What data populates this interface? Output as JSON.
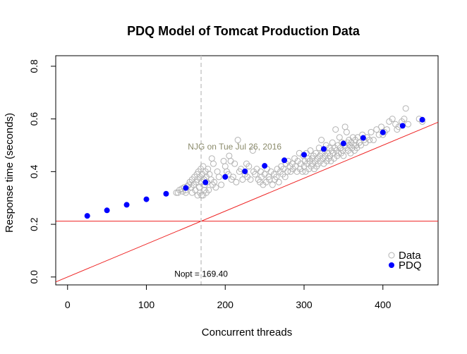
{
  "chart_data": {
    "type": "scatter",
    "title": "PDQ Model of Tomcat Production Data",
    "xlabel": "Concurrent threads",
    "ylabel": "Response time (seconds)",
    "xlim": [
      -15,
      470
    ],
    "ylim": [
      -0.03,
      0.84
    ],
    "x_ticks": [
      0,
      100,
      200,
      300,
      400
    ],
    "y_ticks": [
      0.0,
      0.2,
      0.4,
      0.6,
      0.8
    ],
    "x_tick_labels": [
      "0",
      "100",
      "200",
      "300",
      "400"
    ],
    "y_tick_labels": [
      "0.0",
      "0.2",
      "0.4",
      "0.6",
      "0.8"
    ],
    "grid": false,
    "legend_position": "bottom-right",
    "annotation_text": "NJG on Tue Jul 26, 2016",
    "annotation_x": 212,
    "annotation_y": 0.495,
    "nopt_label": "Nopt = 169.40",
    "nopt_value": 169.4,
    "nopt_label_y": 0.012,
    "horizontal_line_y": 0.212,
    "diagonal_line": {
      "slope": 0.00125,
      "intercept": 0
    },
    "colors": {
      "data_points": "#b3b3b3",
      "pdq_points": "#0000ff",
      "ref_lines": "#ee2222",
      "nopt_line": "#c8c8c8",
      "annotation": "#8b8b6b"
    },
    "series": [
      {
        "name": "Data",
        "marker": "open-circle",
        "points": [
          [
            138,
            0.32
          ],
          [
            142,
            0.33
          ],
          [
            145,
            0.335
          ],
          [
            148,
            0.34
          ],
          [
            150,
            0.33
          ],
          [
            152,
            0.345
          ],
          [
            154,
            0.35
          ],
          [
            155,
            0.36
          ],
          [
            157,
            0.34
          ],
          [
            158,
            0.37
          ],
          [
            160,
            0.35
          ],
          [
            161,
            0.38
          ],
          [
            162,
            0.33
          ],
          [
            163,
            0.36
          ],
          [
            164,
            0.39
          ],
          [
            165,
            0.37
          ],
          [
            166,
            0.4
          ],
          [
            167,
            0.34
          ],
          [
            168,
            0.38
          ],
          [
            169,
            0.41
          ],
          [
            170,
            0.36
          ],
          [
            170,
            0.31
          ],
          [
            171,
            0.39
          ],
          [
            172,
            0.42
          ],
          [
            173,
            0.37
          ],
          [
            174,
            0.35
          ],
          [
            175,
            0.4
          ],
          [
            176,
            0.38
          ],
          [
            177,
            0.36
          ],
          [
            178,
            0.41
          ],
          [
            179,
            0.33
          ],
          [
            180,
            0.39
          ],
          [
            182,
            0.37
          ],
          [
            183,
            0.45
          ],
          [
            185,
            0.43
          ],
          [
            186,
            0.36
          ],
          [
            188,
            0.34
          ],
          [
            190,
            0.4
          ],
          [
            192,
            0.38
          ],
          [
            195,
            0.35
          ],
          [
            165,
            0.31
          ],
          [
            168,
            0.32
          ],
          [
            172,
            0.31
          ],
          [
            174,
            0.33
          ],
          [
            176,
            0.32
          ],
          [
            158,
            0.32
          ],
          [
            150,
            0.32
          ],
          [
            146,
            0.325
          ],
          [
            140,
            0.32
          ],
          [
            184,
            0.35
          ],
          [
            198,
            0.44
          ],
          [
            200,
            0.42
          ],
          [
            202,
            0.4
          ],
          [
            204,
            0.39
          ],
          [
            205,
            0.46
          ],
          [
            207,
            0.44
          ],
          [
            208,
            0.37
          ],
          [
            210,
            0.38
          ],
          [
            212,
            0.43
          ],
          [
            214,
            0.36
          ],
          [
            216,
            0.52
          ],
          [
            218,
            0.4
          ],
          [
            220,
            0.41
          ],
          [
            222,
            0.37
          ],
          [
            225,
            0.39
          ],
          [
            227,
            0.43
          ],
          [
            228,
            0.38
          ],
          [
            230,
            0.42
          ],
          [
            232,
            0.37
          ],
          [
            235,
            0.48
          ],
          [
            236,
            0.4
          ],
          [
            238,
            0.39
          ],
          [
            240,
            0.41
          ],
          [
            242,
            0.37
          ],
          [
            244,
            0.36
          ],
          [
            245,
            0.4
          ],
          [
            246,
            0.38
          ],
          [
            248,
            0.35
          ],
          [
            250,
            0.39
          ],
          [
            252,
            0.36
          ],
          [
            253,
            0.41
          ],
          [
            255,
            0.38
          ],
          [
            256,
            0.37
          ],
          [
            258,
            0.4
          ],
          [
            260,
            0.35
          ],
          [
            262,
            0.39
          ],
          [
            263,
            0.37
          ],
          [
            265,
            0.38
          ],
          [
            266,
            0.41
          ],
          [
            268,
            0.36
          ],
          [
            270,
            0.4
          ],
          [
            271,
            0.42
          ],
          [
            273,
            0.39
          ],
          [
            274,
            0.41
          ],
          [
            276,
            0.38
          ],
          [
            277,
            0.43
          ],
          [
            279,
            0.4
          ],
          [
            280,
            0.44
          ],
          [
            282,
            0.42
          ],
          [
            283,
            0.4
          ],
          [
            285,
            0.43
          ],
          [
            286,
            0.41
          ],
          [
            288,
            0.45
          ],
          [
            289,
            0.42
          ],
          [
            291,
            0.4
          ],
          [
            292,
            0.44
          ],
          [
            294,
            0.47
          ],
          [
            295,
            0.41
          ],
          [
            296,
            0.43
          ],
          [
            298,
            0.4
          ],
          [
            299,
            0.46
          ],
          [
            300,
            0.42
          ],
          [
            301,
            0.44
          ],
          [
            302,
            0.4
          ],
          [
            303,
            0.47
          ],
          [
            304,
            0.43
          ],
          [
            305,
            0.45
          ],
          [
            306,
            0.41
          ],
          [
            307,
            0.44
          ],
          [
            308,
            0.48
          ],
          [
            309,
            0.42
          ],
          [
            310,
            0.45
          ],
          [
            311,
            0.43
          ],
          [
            312,
            0.46
          ],
          [
            313,
            0.41
          ],
          [
            314,
            0.44
          ],
          [
            315,
            0.47
          ],
          [
            316,
            0.42
          ],
          [
            317,
            0.45
          ],
          [
            318,
            0.43
          ],
          [
            319,
            0.49
          ],
          [
            320,
            0.46
          ],
          [
            321,
            0.44
          ],
          [
            322,
            0.52
          ],
          [
            323,
            0.47
          ],
          [
            324,
            0.45
          ],
          [
            325,
            0.43
          ],
          [
            326,
            0.48
          ],
          [
            327,
            0.46
          ],
          [
            328,
            0.5
          ],
          [
            329,
            0.44
          ],
          [
            330,
            0.47
          ],
          [
            331,
            0.45
          ],
          [
            332,
            0.49
          ],
          [
            333,
            0.46
          ],
          [
            334,
            0.44
          ],
          [
            335,
            0.48
          ],
          [
            336,
            0.51
          ],
          [
            337,
            0.47
          ],
          [
            338,
            0.45
          ],
          [
            339,
            0.49
          ],
          [
            340,
            0.56
          ],
          [
            341,
            0.48
          ],
          [
            342,
            0.46
          ],
          [
            343,
            0.5
          ],
          [
            344,
            0.47
          ],
          [
            345,
            0.53
          ],
          [
            346,
            0.49
          ],
          [
            347,
            0.47
          ],
          [
            348,
            0.51
          ],
          [
            349,
            0.48
          ],
          [
            350,
            0.46
          ],
          [
            351,
            0.5
          ],
          [
            352,
            0.57
          ],
          [
            353,
            0.49
          ],
          [
            354,
            0.55
          ],
          [
            355,
            0.51
          ],
          [
            356,
            0.48
          ],
          [
            357,
            0.52
          ],
          [
            358,
            0.5
          ],
          [
            359,
            0.47
          ],
          [
            360,
            0.51
          ],
          [
            361,
            0.49
          ],
          [
            362,
            0.53
          ],
          [
            363,
            0.5
          ],
          [
            364,
            0.48
          ],
          [
            365,
            0.52
          ],
          [
            366,
            0.5
          ],
          [
            367,
            0.49
          ],
          [
            368,
            0.53
          ],
          [
            370,
            0.51
          ],
          [
            372,
            0.5
          ],
          [
            374,
            0.54
          ],
          [
            376,
            0.52
          ],
          [
            378,
            0.51
          ],
          [
            380,
            0.53
          ],
          [
            383,
            0.52
          ],
          [
            385,
            0.55
          ],
          [
            388,
            0.52
          ],
          [
            392,
            0.56
          ],
          [
            395,
            0.54
          ],
          [
            398,
            0.57
          ],
          [
            400,
            0.54
          ],
          [
            402,
            0.55
          ],
          [
            405,
            0.56
          ],
          [
            408,
            0.59
          ],
          [
            412,
            0.6
          ],
          [
            416,
            0.58
          ],
          [
            420,
            0.57
          ],
          [
            424,
            0.59
          ],
          [
            427,
            0.6
          ],
          [
            429,
            0.64
          ],
          [
            432,
            0.58
          ],
          [
            446,
            0.6
          ],
          [
            450,
            0.59
          ],
          [
            418,
            0.56
          ]
        ]
      },
      {
        "name": "PDQ",
        "marker": "filled-circle",
        "points": [
          [
            25,
            0.232
          ],
          [
            50,
            0.253
          ],
          [
            75,
            0.274
          ],
          [
            100,
            0.295
          ],
          [
            125,
            0.316
          ],
          [
            150,
            0.338
          ],
          [
            175,
            0.359
          ],
          [
            200,
            0.38
          ],
          [
            225,
            0.401
          ],
          [
            250,
            0.422
          ],
          [
            275,
            0.443
          ],
          [
            300,
            0.464
          ],
          [
            325,
            0.486
          ],
          [
            350,
            0.507
          ],
          [
            375,
            0.528
          ],
          [
            400,
            0.549
          ],
          [
            425,
            0.574
          ],
          [
            450,
            0.597
          ]
        ]
      }
    ],
    "legend": [
      "Data",
      "PDQ"
    ]
  }
}
